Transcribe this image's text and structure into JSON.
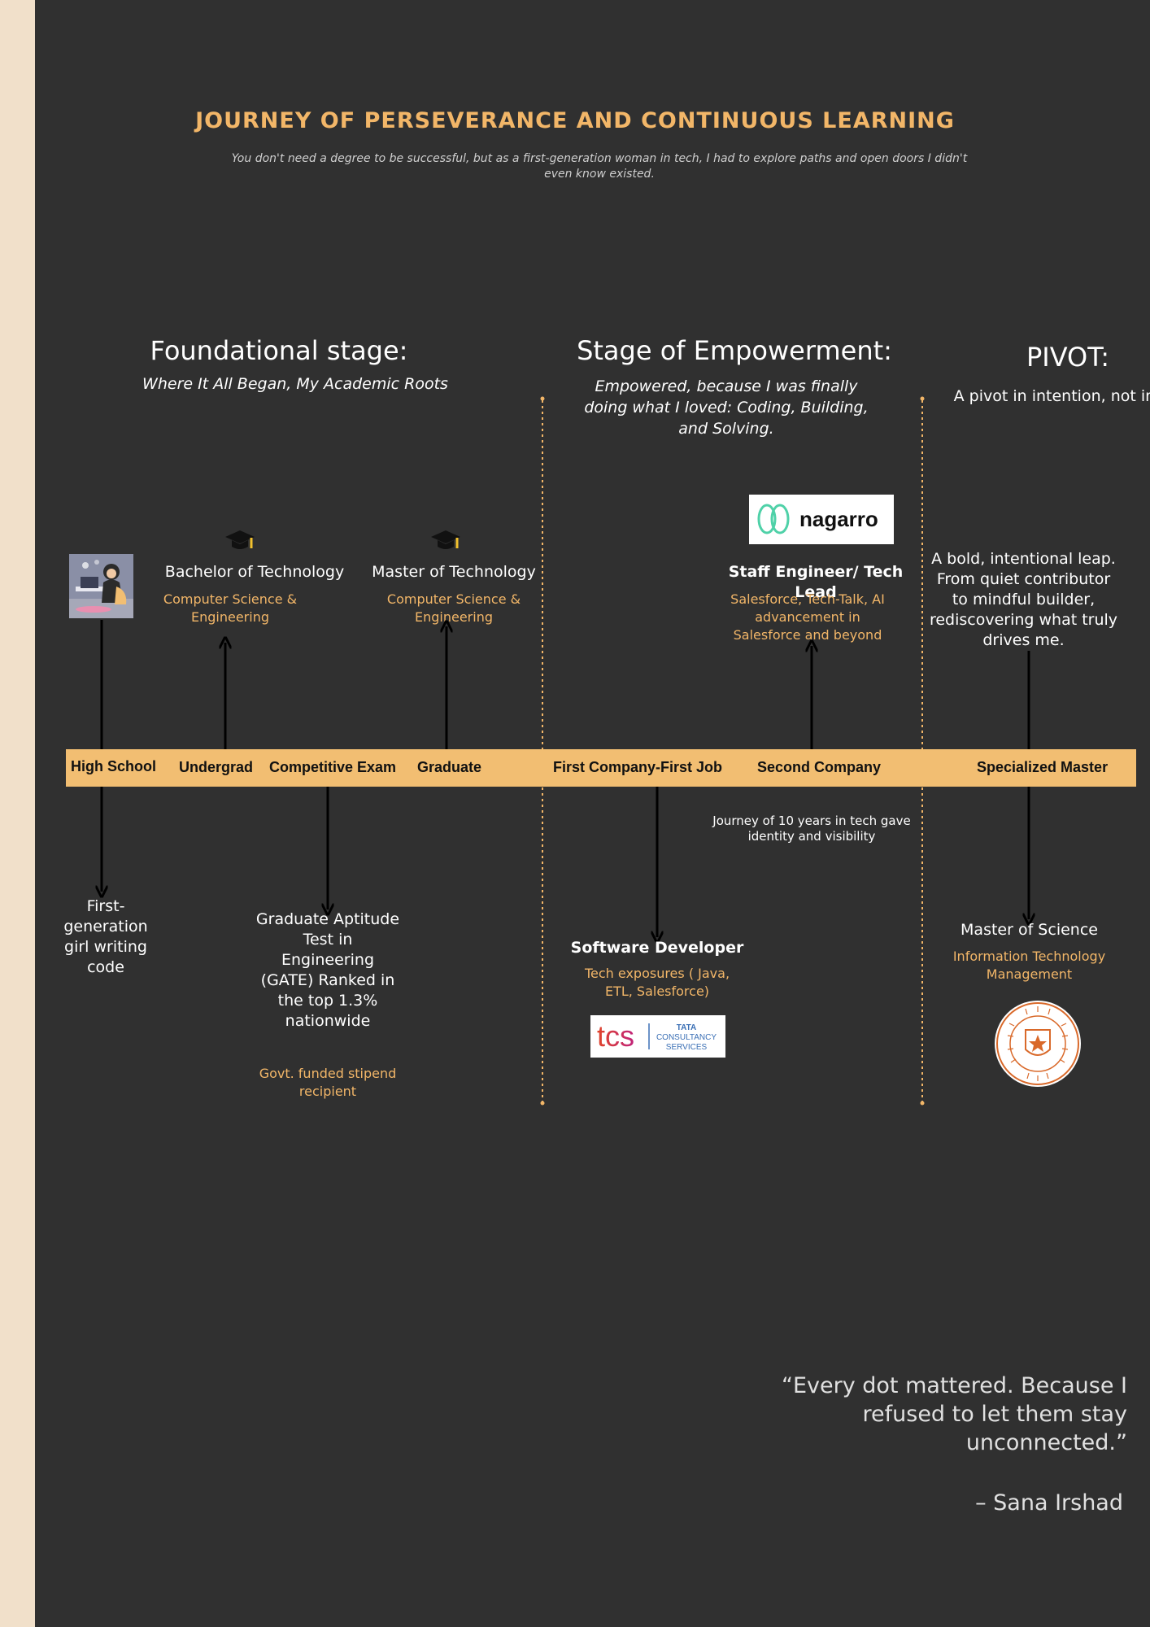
{
  "header": {
    "title": "JOURNEY OF PERSEVERANCE AND CONTINUOUS LEARNING",
    "subtitle": "You don't need a degree to be successful, but as a first-generation woman in tech, I had to explore paths and open doors I didn't even know existed."
  },
  "stages": {
    "foundational": {
      "heading": "Foundational stage:",
      "sub": "Where It All Began, My Academic Roots"
    },
    "empowerment": {
      "heading": "Stage of Empowerment:",
      "sub": "Empowered, because I was finally doing what I loved: Coding, Building, and Solving."
    },
    "pivot": {
      "heading": "PIVOT:",
      "sub": "A pivot in intention, not in title"
    }
  },
  "timeline": {
    "milestones": [
      "High School",
      "Undergrad",
      "Competitive Exam",
      "Graduate",
      "First Company-First Job",
      "Second Company",
      "Specialized Master"
    ]
  },
  "above": {
    "bachelor": {
      "title": "Bachelor of Technology",
      "detail": "Computer Science & Engineering"
    },
    "master": {
      "title": "Master of Technology",
      "detail": "Computer Science & Engineering"
    },
    "staff": {
      "title": "Staff Engineer/ Tech Lead",
      "detail": "Salesforce, Tech-Talk, AI advancement in Salesforce and beyond",
      "logo": "nagarro"
    },
    "pivot_text": "A bold, intentional leap. From quiet contributor to mindful builder, rediscovering what truly drives me."
  },
  "below": {
    "highschool": "First-generation girl writing code",
    "gate": {
      "title": "Graduate Aptitude Test in Engineering (GATE) Ranked in the top 1.3% nationwide",
      "detail": "Govt. funded stipend recipient"
    },
    "journey_note": "Journey of 10 years in tech gave identity and visibility",
    "software_dev": {
      "title": "Software Developer",
      "detail": "Tech exposures ( Java, ETL, Salesforce)",
      "logo_main": "tcs",
      "logo_sub1": "TATA",
      "logo_sub2": "CONSULTANCY",
      "logo_sub3": "SERVICES"
    },
    "ms": {
      "title": "Master of Science",
      "detail": "Information Technology Management"
    }
  },
  "quote": {
    "text": "“Every dot mattered. Because I refused to let them stay unconnected.”",
    "author": "– Sana Irshad"
  },
  "colors": {
    "background": "#303030",
    "accent": "#f2b668",
    "bar": "#f2be72",
    "border": "#f1e0ca"
  },
  "icons": [
    "graduation-cap-icon",
    "graduation-cap-icon",
    "avatar-illustration",
    "university-seal"
  ]
}
